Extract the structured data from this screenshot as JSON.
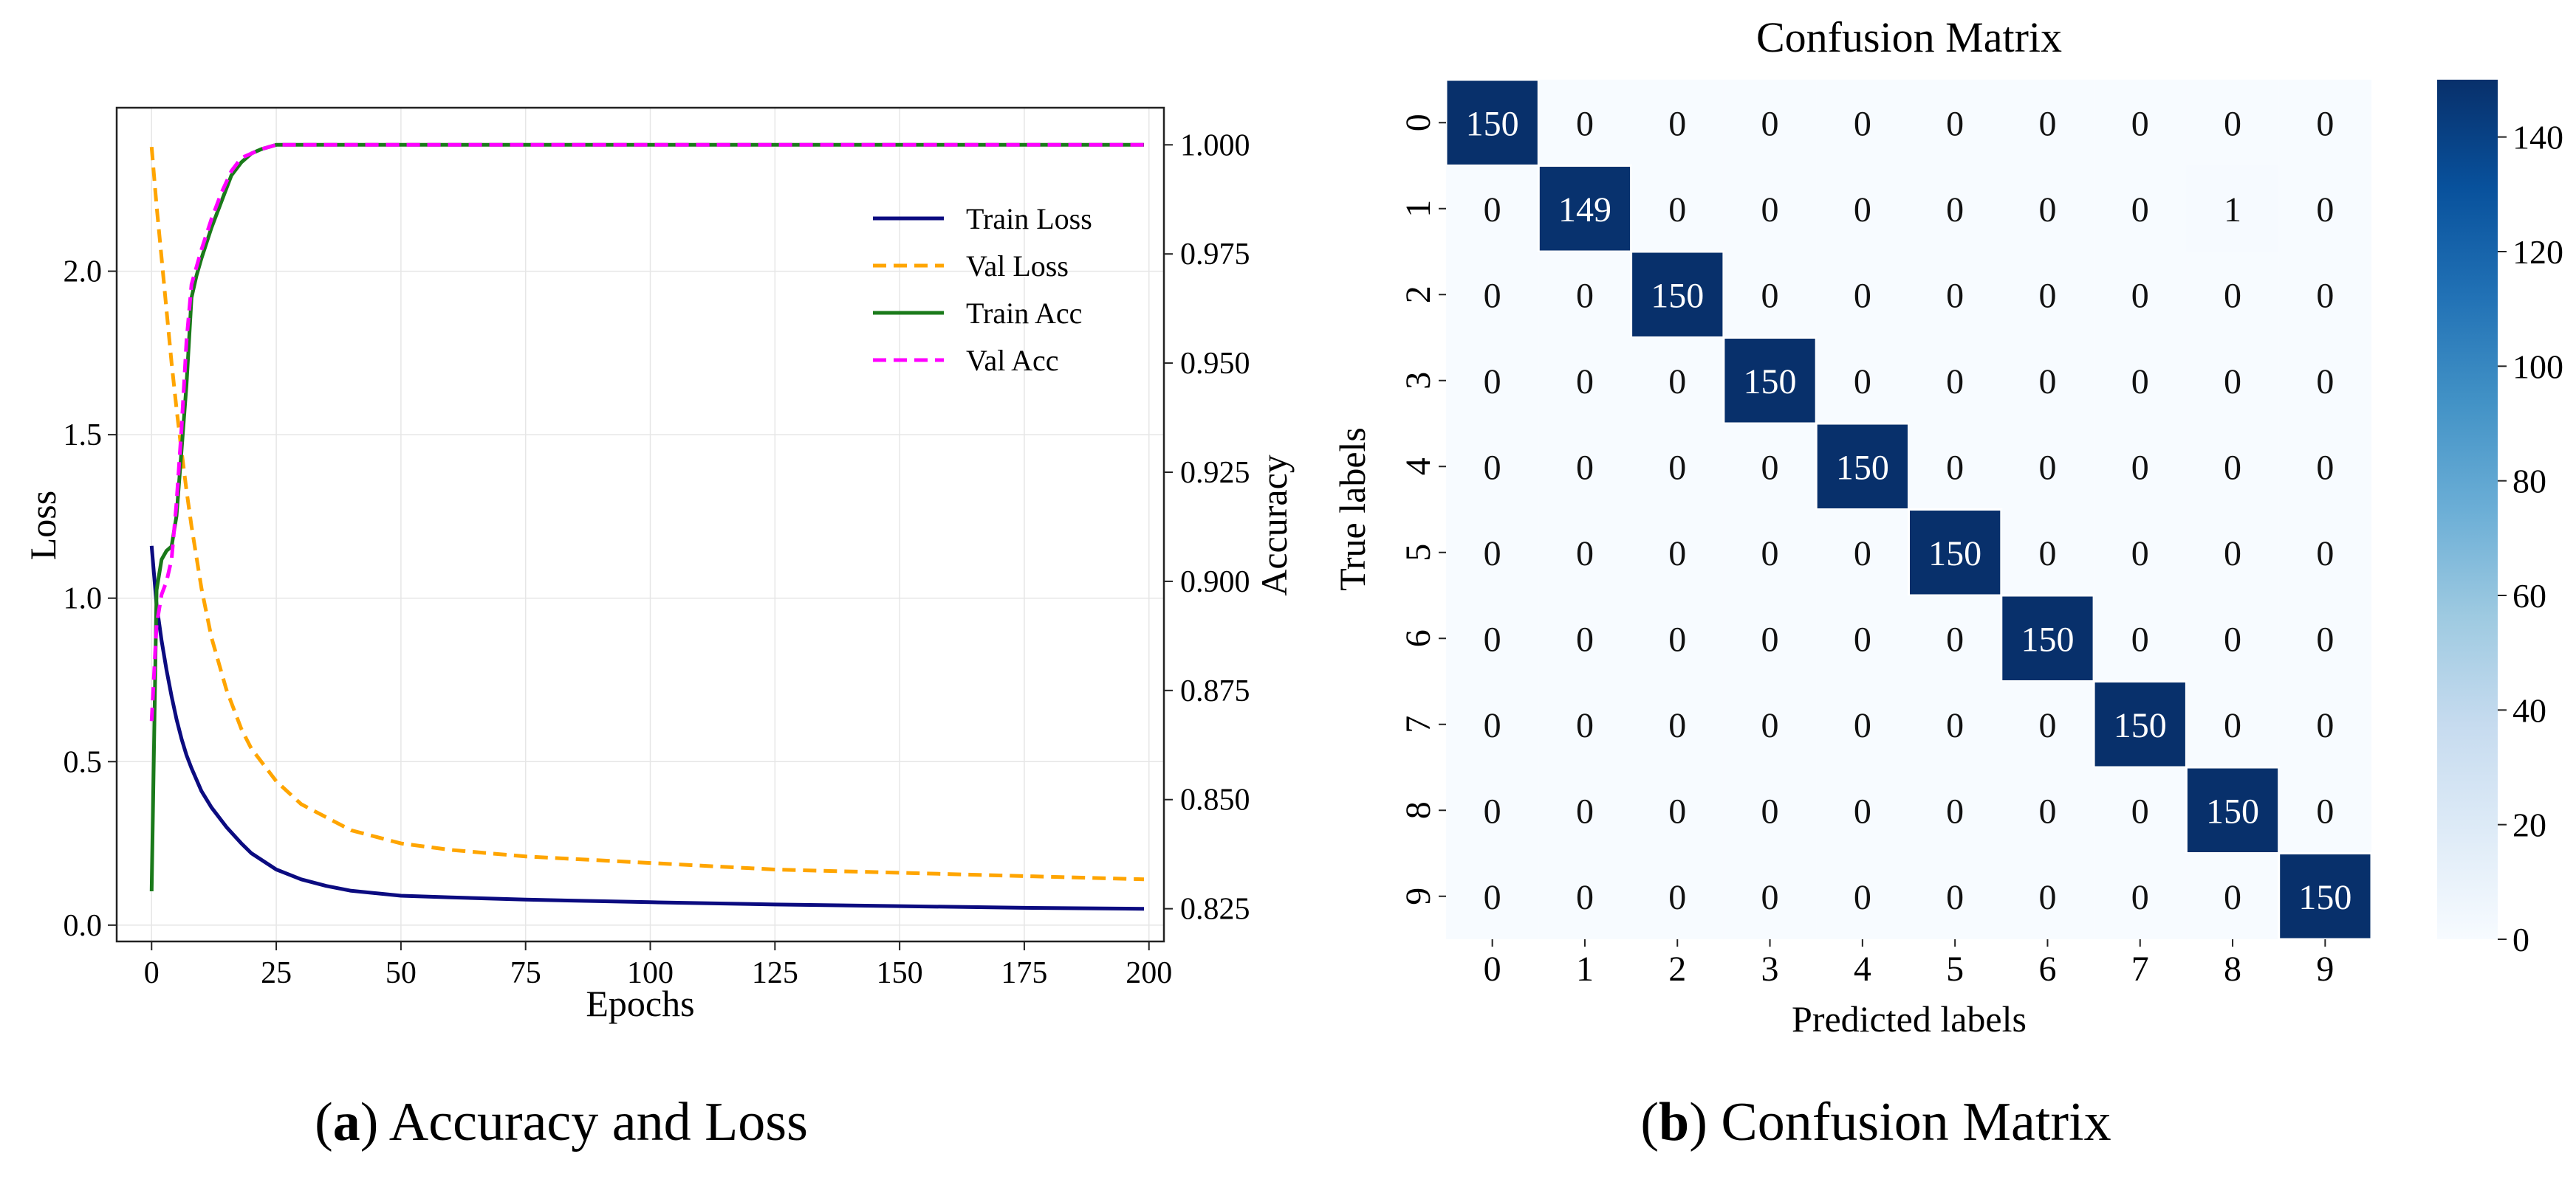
{
  "chart_data": [
    {
      "type": "line",
      "panel_label": "a",
      "caption": "Accuracy and Loss",
      "xlabel": "Epochs",
      "ylabel_left": "Loss",
      "ylabel_right": "Accuracy",
      "xlim": [
        -7,
        203
      ],
      "ylim_left": [
        -0.05,
        2.5
      ],
      "ylim_right": [
        0.8175,
        1.0085
      ],
      "xticks": [
        0,
        25,
        50,
        75,
        100,
        125,
        150,
        175,
        200
      ],
      "yticks_left": [
        0.0,
        0.5,
        1.0,
        1.5,
        2.0
      ],
      "ytick_labels_left": [
        "0.0",
        "0.5",
        "1.0",
        "1.5",
        "2.0"
      ],
      "yticks_right": [
        0.825,
        0.85,
        0.875,
        0.9,
        0.925,
        0.95,
        0.975,
        1.0
      ],
      "ytick_labels_right": [
        "0.825",
        "0.850",
        "0.875",
        "0.900",
        "0.925",
        "0.950",
        "0.975",
        "1.000"
      ],
      "grid": true,
      "legend_position": "upper-right",
      "series": [
        {
          "name": "Train Loss",
          "axis": "left",
          "color": "#0b0b80",
          "dash": "solid",
          "x": [
            0,
            1,
            2,
            3,
            4,
            5,
            6,
            7,
            8,
            10,
            12,
            15,
            18,
            20,
            25,
            30,
            35,
            40,
            50,
            60,
            75,
            100,
            125,
            150,
            175,
            199
          ],
          "y": [
            1.16,
            0.98,
            0.87,
            0.78,
            0.7,
            0.63,
            0.57,
            0.52,
            0.48,
            0.41,
            0.36,
            0.3,
            0.25,
            0.22,
            0.17,
            0.14,
            0.12,
            0.105,
            0.09,
            0.085,
            0.078,
            0.07,
            0.063,
            0.058,
            0.053,
            0.05
          ]
        },
        {
          "name": "Val Loss",
          "axis": "left",
          "color": "#ffa500",
          "dash": "dashed",
          "x": [
            0,
            1,
            2,
            3,
            4,
            5,
            6,
            7,
            8,
            10,
            12,
            15,
            18,
            20,
            25,
            30,
            35,
            40,
            50,
            60,
            75,
            100,
            125,
            150,
            175,
            199
          ],
          "y": [
            2.38,
            2.2,
            2.04,
            1.88,
            1.72,
            1.58,
            1.45,
            1.33,
            1.22,
            1.03,
            0.88,
            0.72,
            0.6,
            0.54,
            0.44,
            0.37,
            0.33,
            0.29,
            0.25,
            0.23,
            0.21,
            0.19,
            0.17,
            0.16,
            0.15,
            0.14
          ]
        },
        {
          "name": "Train Acc",
          "axis": "right",
          "color": "#1a7a1a",
          "dash": "solid",
          "x": [
            0,
            1,
            2,
            3,
            4,
            5,
            6,
            7,
            8,
            9,
            10,
            12,
            14,
            16,
            18,
            20,
            22,
            25,
            30,
            40,
            60,
            80,
            100,
            150,
            199
          ],
          "y": [
            0.829,
            0.898,
            0.905,
            0.907,
            0.908,
            0.915,
            0.93,
            0.945,
            0.965,
            0.97,
            0.974,
            0.981,
            0.987,
            0.993,
            0.996,
            0.998,
            0.999,
            1.0,
            1.0,
            1.0,
            1.0,
            1.0,
            1.0,
            1.0,
            1.0
          ]
        },
        {
          "name": "Val Acc",
          "axis": "right",
          "color": "#ff00ff",
          "dash": "dashed",
          "x": [
            0,
            1,
            2,
            3,
            4,
            5,
            6,
            7,
            8,
            9,
            10,
            12,
            14,
            16,
            18,
            20,
            22,
            25,
            30,
            40,
            60,
            80,
            100,
            150,
            199
          ],
          "y": [
            0.868,
            0.89,
            0.897,
            0.9,
            0.905,
            0.918,
            0.935,
            0.955,
            0.968,
            0.972,
            0.976,
            0.983,
            0.989,
            0.994,
            0.997,
            0.998,
            0.999,
            1.0,
            1.0,
            1.0,
            1.0,
            1.0,
            1.0,
            1.0,
            1.0
          ]
        }
      ]
    },
    {
      "type": "heatmap",
      "panel_label": "b",
      "caption": "Confusion Matrix",
      "title": "Confusion Matrix",
      "xlabel": "Predicted labels",
      "ylabel": "True labels",
      "x_categories": [
        "0",
        "1",
        "2",
        "3",
        "4",
        "5",
        "6",
        "7",
        "8",
        "9"
      ],
      "y_categories": [
        "0",
        "1",
        "2",
        "3",
        "4",
        "5",
        "6",
        "7",
        "8",
        "9"
      ],
      "values": [
        [
          150,
          0,
          0,
          0,
          0,
          0,
          0,
          0,
          0,
          0
        ],
        [
          0,
          149,
          0,
          0,
          0,
          0,
          0,
          0,
          1,
          0
        ],
        [
          0,
          0,
          150,
          0,
          0,
          0,
          0,
          0,
          0,
          0
        ],
        [
          0,
          0,
          0,
          150,
          0,
          0,
          0,
          0,
          0,
          0
        ],
        [
          0,
          0,
          0,
          0,
          150,
          0,
          0,
          0,
          0,
          0
        ],
        [
          0,
          0,
          0,
          0,
          0,
          150,
          0,
          0,
          0,
          0
        ],
        [
          0,
          0,
          0,
          0,
          0,
          0,
          150,
          0,
          0,
          0
        ],
        [
          0,
          0,
          0,
          0,
          0,
          0,
          0,
          150,
          0,
          0
        ],
        [
          0,
          0,
          0,
          0,
          0,
          0,
          0,
          0,
          150,
          0
        ],
        [
          0,
          0,
          0,
          0,
          0,
          0,
          0,
          0,
          0,
          150
        ]
      ],
      "colormap": "Blues",
      "color_low": "#f7fbff",
      "color_high": "#08306b",
      "vmin": 0,
      "vmax": 150,
      "colorbar_ticks": [
        0,
        20,
        40,
        60,
        80,
        100,
        120,
        140
      ],
      "colorbar_tick_labels": [
        "0",
        "20",
        "40",
        "60",
        "80",
        "100",
        "120",
        "140"
      ]
    }
  ]
}
